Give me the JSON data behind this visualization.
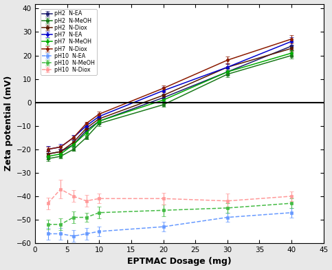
{
  "x": [
    2,
    4,
    6,
    8,
    10,
    20,
    30,
    40
  ],
  "series": [
    {
      "key": "pH2_NEA",
      "y": [
        -22,
        -21,
        -18,
        -12,
        -8,
        2,
        13,
        24
      ],
      "yerr": [
        1.2,
        1.0,
        0.8,
        1.0,
        1.2,
        1.5,
        1.5,
        1.8
      ],
      "color": "#1c1c6e",
      "label": "pH2  N-EA",
      "linestyle": "-",
      "marker": "s",
      "markersize": 3.0
    },
    {
      "key": "pH2_NMeOH",
      "y": [
        -24,
        -23,
        -20,
        -15,
        -9,
        -1,
        12,
        20
      ],
      "yerr": [
        1.2,
        1.0,
        0.8,
        0.8,
        1.0,
        0.8,
        1.2,
        1.2
      ],
      "color": "#1a7a1a",
      "label": "pH2  N-MeOH",
      "linestyle": "-",
      "marker": "s",
      "markersize": 3.0
    },
    {
      "key": "pH2_NDiox",
      "y": [
        -22,
        -21,
        -17,
        -11,
        -7,
        3,
        15,
        23
      ],
      "yerr": [
        1.0,
        0.8,
        0.8,
        0.8,
        1.0,
        1.2,
        1.2,
        1.2
      ],
      "color": "#5a1a00",
      "label": "pH2  N-Diox",
      "linestyle": "-",
      "marker": "s",
      "markersize": 3.0
    },
    {
      "key": "pH7_NEA",
      "y": [
        -20,
        -19,
        -15,
        -10,
        -6,
        5,
        15,
        26
      ],
      "yerr": [
        1.5,
        1.2,
        1.0,
        1.0,
        1.2,
        1.5,
        1.5,
        1.8
      ],
      "color": "#0000cc",
      "label": "pH7  N-EA",
      "linestyle": "-",
      "marker": "o",
      "markersize": 3.0
    },
    {
      "key": "pH7_NMeOH",
      "y": [
        -23,
        -22,
        -18,
        -13,
        -8,
        1,
        13,
        21
      ],
      "yerr": [
        1.2,
        1.0,
        0.8,
        0.8,
        1.0,
        0.8,
        1.2,
        1.2
      ],
      "color": "#00aa00",
      "label": "pH7  N-MeOH",
      "linestyle": "-",
      "marker": "o",
      "markersize": 3.0
    },
    {
      "key": "pH7_NDiox",
      "y": [
        -20,
        -19,
        -15,
        -9,
        -5,
        6,
        18,
        27
      ],
      "yerr": [
        1.0,
        0.8,
        0.8,
        0.8,
        1.0,
        1.2,
        1.5,
        1.8
      ],
      "color": "#8b1a00",
      "label": "pH7  N-Diox",
      "linestyle": "-",
      "marker": "o",
      "markersize": 3.0
    },
    {
      "key": "pH10_NEA",
      "y": [
        -56,
        -56,
        -57,
        -56,
        -55,
        -53,
        -49,
        -47
      ],
      "yerr": [
        2.5,
        2.5,
        2.5,
        2.5,
        2.0,
        2.0,
        2.0,
        2.0
      ],
      "color": "#6699ff",
      "label": "pH10  N-EA",
      "linestyle": "--",
      "marker": "s",
      "markersize": 3.0
    },
    {
      "key": "pH10_NMeOH",
      "y": [
        -52,
        -52,
        -49,
        -49,
        -47,
        -46,
        -45,
        -43
      ],
      "yerr": [
        2.0,
        2.5,
        2.5,
        2.0,
        2.5,
        2.5,
        2.0,
        2.0
      ],
      "color": "#44bb44",
      "label": "pH10  N-MeOH",
      "linestyle": "--",
      "marker": "s",
      "markersize": 3.0
    },
    {
      "key": "pH10_NDiox",
      "y": [
        -43,
        -37,
        -40,
        -42,
        -41,
        -41,
        -42,
        -40
      ],
      "yerr": [
        2.5,
        4.0,
        2.5,
        2.5,
        2.0,
        2.5,
        3.0,
        2.0
      ],
      "color": "#ff9999",
      "label": "pH10  N-Diox",
      "linestyle": "--",
      "marker": "s",
      "markersize": 3.0
    }
  ],
  "xlabel": "EPTMAC Dosage (mg)",
  "ylabel": "Zeta potential (mV)",
  "xlim": [
    0,
    45
  ],
  "ylim": [
    -60,
    42
  ],
  "xticks": [
    0,
    5,
    10,
    15,
    20,
    25,
    30,
    35,
    40,
    45
  ],
  "yticks": [
    -60,
    -50,
    -40,
    -30,
    -20,
    -10,
    0,
    10,
    20,
    30,
    40
  ],
  "hline_y": 0,
  "fig_facecolor": "#e8e8e8",
  "ax_facecolor": "#ffffff"
}
